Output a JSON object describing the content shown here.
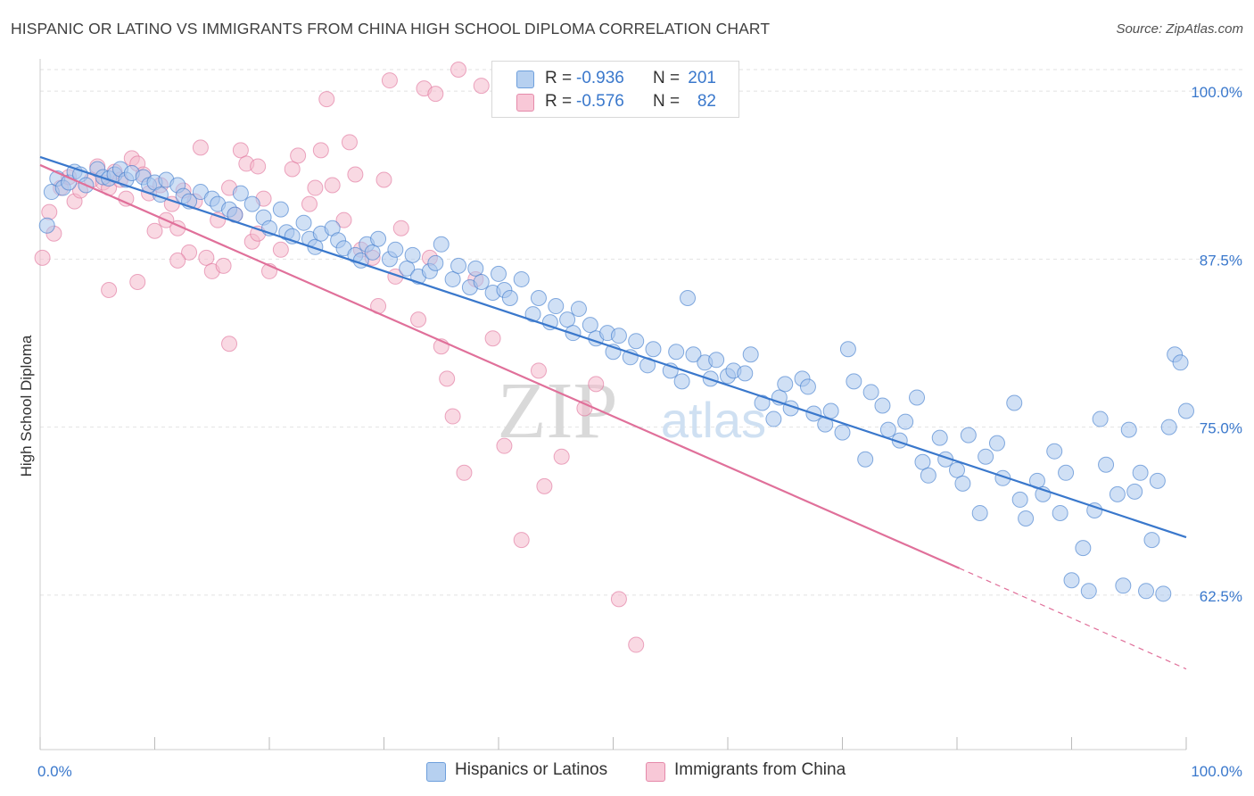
{
  "title": "HISPANIC OR LATINO VS IMMIGRANTS FROM CHINA HIGH SCHOOL DIPLOMA CORRELATION CHART",
  "source": "Source: ZipAtlas.com",
  "watermark": {
    "zip": "ZIP",
    "atlas": "atlas"
  },
  "colors": {
    "blue": "#3a78cc",
    "blue_fill": "#a9c7ec",
    "pink": "#e0709a",
    "pink_fill": "#f4b9cc",
    "grid": "#e2e2e2",
    "tick_label": "#3a78cc"
  },
  "legend": {
    "r_label": "R =",
    "n_label": "N =",
    "rows": [
      {
        "r": "-0.936",
        "n": "201"
      },
      {
        "r": "-0.576",
        "n": "82"
      }
    ]
  },
  "bottom_legend": [
    "Hispanics or Latinos",
    "Immigrants from China"
  ],
  "chart_data": {
    "type": "scatter",
    "title": "HISPANIC OR LATINO VS IMMIGRANTS FROM CHINA HIGH SCHOOL DIPLOMA CORRELATION CHART",
    "xlabel": "",
    "ylabel": "High School Diploma",
    "x_tick_labels": [
      "0.0%",
      "100.0%"
    ],
    "y_tick_labels": [
      "100.0%",
      "87.5%",
      "75.0%",
      "62.5%"
    ],
    "y_ticks": [
      100.0,
      87.5,
      75.0,
      62.5
    ],
    "xlim": [
      0,
      100
    ],
    "ylim": [
      51,
      102
    ],
    "grid": true,
    "legend_position": "top-center",
    "series": [
      {
        "name": "Hispanics or Latinos",
        "color": "#3a78cc",
        "trend": {
          "x": [
            0,
            100
          ],
          "y": [
            95.1,
            66.8
          ]
        },
        "points": [
          [
            0.6,
            90.0
          ],
          [
            1.0,
            92.5
          ],
          [
            1.5,
            93.5
          ],
          [
            2.0,
            92.8
          ],
          [
            2.5,
            93.2
          ],
          [
            3.0,
            94.0
          ],
          [
            3.5,
            93.8
          ],
          [
            4.0,
            93.0
          ],
          [
            5.0,
            94.2
          ],
          [
            5.5,
            93.6
          ],
          [
            6.0,
            93.5
          ],
          [
            6.5,
            93.8
          ],
          [
            7.0,
            94.2
          ],
          [
            7.5,
            93.4
          ],
          [
            8.0,
            93.9
          ],
          [
            9.0,
            93.6
          ],
          [
            9.5,
            93.0
          ],
          [
            10.0,
            93.2
          ],
          [
            10.5,
            92.3
          ],
          [
            11.0,
            93.4
          ],
          [
            12.0,
            93.0
          ],
          [
            12.5,
            92.2
          ],
          [
            13.0,
            91.8
          ],
          [
            14.0,
            92.5
          ],
          [
            15.0,
            92.0
          ],
          [
            15.5,
            91.6
          ],
          [
            16.5,
            91.2
          ],
          [
            17.0,
            90.8
          ],
          [
            17.5,
            92.4
          ],
          [
            18.5,
            91.6
          ],
          [
            19.5,
            90.6
          ],
          [
            20.0,
            89.8
          ],
          [
            21.0,
            91.2
          ],
          [
            21.5,
            89.5
          ],
          [
            22.0,
            89.2
          ],
          [
            23.0,
            90.2
          ],
          [
            23.5,
            89.0
          ],
          [
            24.0,
            88.4
          ],
          [
            24.5,
            89.4
          ],
          [
            25.5,
            89.8
          ],
          [
            26.0,
            88.9
          ],
          [
            26.5,
            88.3
          ],
          [
            27.5,
            87.8
          ],
          [
            28.0,
            87.4
          ],
          [
            28.5,
            88.6
          ],
          [
            29.0,
            88.0
          ],
          [
            29.5,
            89.0
          ],
          [
            30.5,
            87.5
          ],
          [
            31.0,
            88.2
          ],
          [
            32.0,
            86.8
          ],
          [
            32.5,
            87.8
          ],
          [
            33.0,
            86.2
          ],
          [
            34.0,
            86.6
          ],
          [
            34.5,
            87.2
          ],
          [
            35.0,
            88.6
          ],
          [
            36.0,
            86.0
          ],
          [
            36.5,
            87.0
          ],
          [
            37.5,
            85.4
          ],
          [
            38.0,
            86.8
          ],
          [
            38.5,
            85.8
          ],
          [
            39.5,
            85.0
          ],
          [
            40.0,
            86.4
          ],
          [
            40.5,
            85.2
          ],
          [
            41.0,
            84.6
          ],
          [
            42.0,
            86.0
          ],
          [
            43.0,
            83.4
          ],
          [
            43.5,
            84.6
          ],
          [
            44.5,
            82.8
          ],
          [
            45.0,
            84.0
          ],
          [
            46.0,
            83.0
          ],
          [
            46.5,
            82.0
          ],
          [
            47.0,
            83.8
          ],
          [
            48.0,
            82.6
          ],
          [
            48.5,
            81.6
          ],
          [
            49.5,
            82.0
          ],
          [
            50.0,
            80.6
          ],
          [
            50.5,
            81.8
          ],
          [
            51.5,
            80.2
          ],
          [
            52.0,
            81.4
          ],
          [
            53.0,
            79.6
          ],
          [
            53.5,
            80.8
          ],
          [
            55.0,
            79.2
          ],
          [
            55.5,
            80.6
          ],
          [
            56.0,
            78.4
          ],
          [
            56.5,
            84.6
          ],
          [
            57.0,
            80.4
          ],
          [
            58.0,
            79.8
          ],
          [
            58.5,
            78.6
          ],
          [
            59.0,
            80.0
          ],
          [
            60.0,
            78.8
          ],
          [
            60.5,
            79.2
          ],
          [
            61.5,
            79.0
          ],
          [
            62.0,
            80.4
          ],
          [
            63.0,
            76.8
          ],
          [
            64.0,
            75.6
          ],
          [
            64.5,
            77.2
          ],
          [
            65.0,
            78.2
          ],
          [
            65.5,
            76.4
          ],
          [
            66.5,
            78.6
          ],
          [
            67.0,
            78.0
          ],
          [
            67.5,
            76.0
          ],
          [
            68.5,
            75.2
          ],
          [
            69.0,
            76.2
          ],
          [
            70.0,
            74.6
          ],
          [
            70.5,
            80.8
          ],
          [
            71.0,
            78.4
          ],
          [
            72.0,
            72.6
          ],
          [
            72.5,
            77.6
          ],
          [
            73.5,
            76.6
          ],
          [
            74.0,
            74.8
          ],
          [
            75.0,
            74.0
          ],
          [
            75.5,
            75.4
          ],
          [
            76.5,
            77.2
          ],
          [
            77.0,
            72.4
          ],
          [
            77.5,
            71.4
          ],
          [
            78.5,
            74.2
          ],
          [
            79.0,
            72.6
          ],
          [
            80.0,
            71.8
          ],
          [
            80.5,
            70.8
          ],
          [
            81.0,
            74.4
          ],
          [
            82.0,
            68.6
          ],
          [
            82.5,
            72.8
          ],
          [
            83.5,
            73.8
          ],
          [
            84.0,
            71.2
          ],
          [
            85.0,
            76.8
          ],
          [
            85.5,
            69.6
          ],
          [
            86.0,
            68.2
          ],
          [
            87.0,
            71.0
          ],
          [
            87.5,
            70.0
          ],
          [
            88.5,
            73.2
          ],
          [
            89.0,
            68.6
          ],
          [
            89.5,
            71.6
          ],
          [
            90.0,
            63.6
          ],
          [
            91.0,
            66.0
          ],
          [
            91.5,
            62.8
          ],
          [
            92.0,
            68.8
          ],
          [
            92.5,
            75.6
          ],
          [
            93.0,
            72.2
          ],
          [
            94.0,
            70.0
          ],
          [
            94.5,
            63.2
          ],
          [
            95.0,
            74.8
          ],
          [
            95.5,
            70.2
          ],
          [
            96.0,
            71.6
          ],
          [
            96.5,
            62.8
          ],
          [
            97.0,
            66.6
          ],
          [
            97.5,
            71.0
          ],
          [
            98.0,
            62.6
          ],
          [
            98.5,
            75.0
          ],
          [
            99.0,
            80.4
          ],
          [
            99.5,
            79.8
          ],
          [
            100.0,
            76.2
          ]
        ]
      },
      {
        "name": "Immigrants from China",
        "color": "#e0709a",
        "trend": {
          "x": [
            0,
            80.2
          ],
          "y": [
            94.5,
            64.5
          ]
        },
        "trend_dashed": {
          "x": [
            80.2,
            100
          ],
          "y": [
            64.5,
            57.0
          ]
        },
        "points": [
          [
            0.2,
            87.6
          ],
          [
            0.8,
            91.0
          ],
          [
            1.2,
            89.4
          ],
          [
            1.8,
            92.8
          ],
          [
            2.5,
            93.6
          ],
          [
            3.0,
            91.8
          ],
          [
            3.5,
            92.6
          ],
          [
            4.5,
            93.4
          ],
          [
            5.0,
            94.4
          ],
          [
            5.5,
            93.2
          ],
          [
            6.0,
            92.8
          ],
          [
            6.5,
            94.0
          ],
          [
            7.0,
            93.4
          ],
          [
            7.5,
            92.0
          ],
          [
            8.0,
            95.0
          ],
          [
            8.5,
            94.6
          ],
          [
            9.0,
            93.8
          ],
          [
            9.5,
            92.4
          ],
          [
            10.0,
            89.6
          ],
          [
            10.5,
            93.0
          ],
          [
            11.0,
            90.4
          ],
          [
            11.5,
            91.6
          ],
          [
            12.0,
            89.8
          ],
          [
            12.5,
            92.6
          ],
          [
            13.0,
            88.0
          ],
          [
            13.5,
            91.8
          ],
          [
            14.0,
            95.8
          ],
          [
            14.5,
            87.6
          ],
          [
            15.0,
            86.6
          ],
          [
            15.5,
            90.4
          ],
          [
            16.0,
            87.0
          ],
          [
            16.5,
            92.8
          ],
          [
            17.0,
            90.8
          ],
          [
            17.5,
            95.6
          ],
          [
            18.0,
            94.6
          ],
          [
            18.5,
            88.8
          ],
          [
            19.0,
            89.4
          ],
          [
            19.5,
            92.0
          ],
          [
            20.0,
            86.6
          ],
          [
            21.0,
            88.2
          ],
          [
            22.0,
            94.2
          ],
          [
            22.5,
            95.2
          ],
          [
            23.5,
            91.6
          ],
          [
            24.0,
            92.8
          ],
          [
            25.5,
            93.0
          ],
          [
            26.5,
            90.4
          ],
          [
            27.0,
            96.2
          ],
          [
            27.5,
            93.8
          ],
          [
            28.0,
            88.2
          ],
          [
            29.0,
            87.6
          ],
          [
            29.5,
            84.0
          ],
          [
            30.0,
            93.4
          ],
          [
            31.0,
            86.2
          ],
          [
            31.5,
            89.8
          ],
          [
            33.0,
            83.0
          ],
          [
            34.0,
            87.6
          ],
          [
            35.0,
            81.0
          ],
          [
            35.5,
            78.6
          ],
          [
            36.0,
            75.8
          ],
          [
            37.0,
            71.6
          ],
          [
            38.0,
            86.0
          ],
          [
            39.5,
            81.6
          ],
          [
            40.5,
            73.6
          ],
          [
            42.0,
            66.6
          ],
          [
            43.5,
            79.2
          ],
          [
            44.0,
            70.6
          ],
          [
            45.5,
            72.8
          ],
          [
            47.5,
            76.4
          ],
          [
            48.5,
            78.2
          ],
          [
            50.5,
            62.2
          ],
          [
            52.0,
            58.8
          ],
          [
            24.5,
            95.6
          ],
          [
            25.0,
            99.4
          ],
          [
            30.5,
            100.8
          ],
          [
            33.5,
            100.2
          ],
          [
            36.5,
            101.6
          ],
          [
            38.5,
            100.4
          ],
          [
            34.5,
            99.8
          ],
          [
            6.0,
            85.2
          ],
          [
            8.5,
            85.8
          ],
          [
            12.0,
            87.4
          ],
          [
            19.0,
            94.4
          ],
          [
            16.5,
            81.2
          ]
        ]
      }
    ]
  }
}
